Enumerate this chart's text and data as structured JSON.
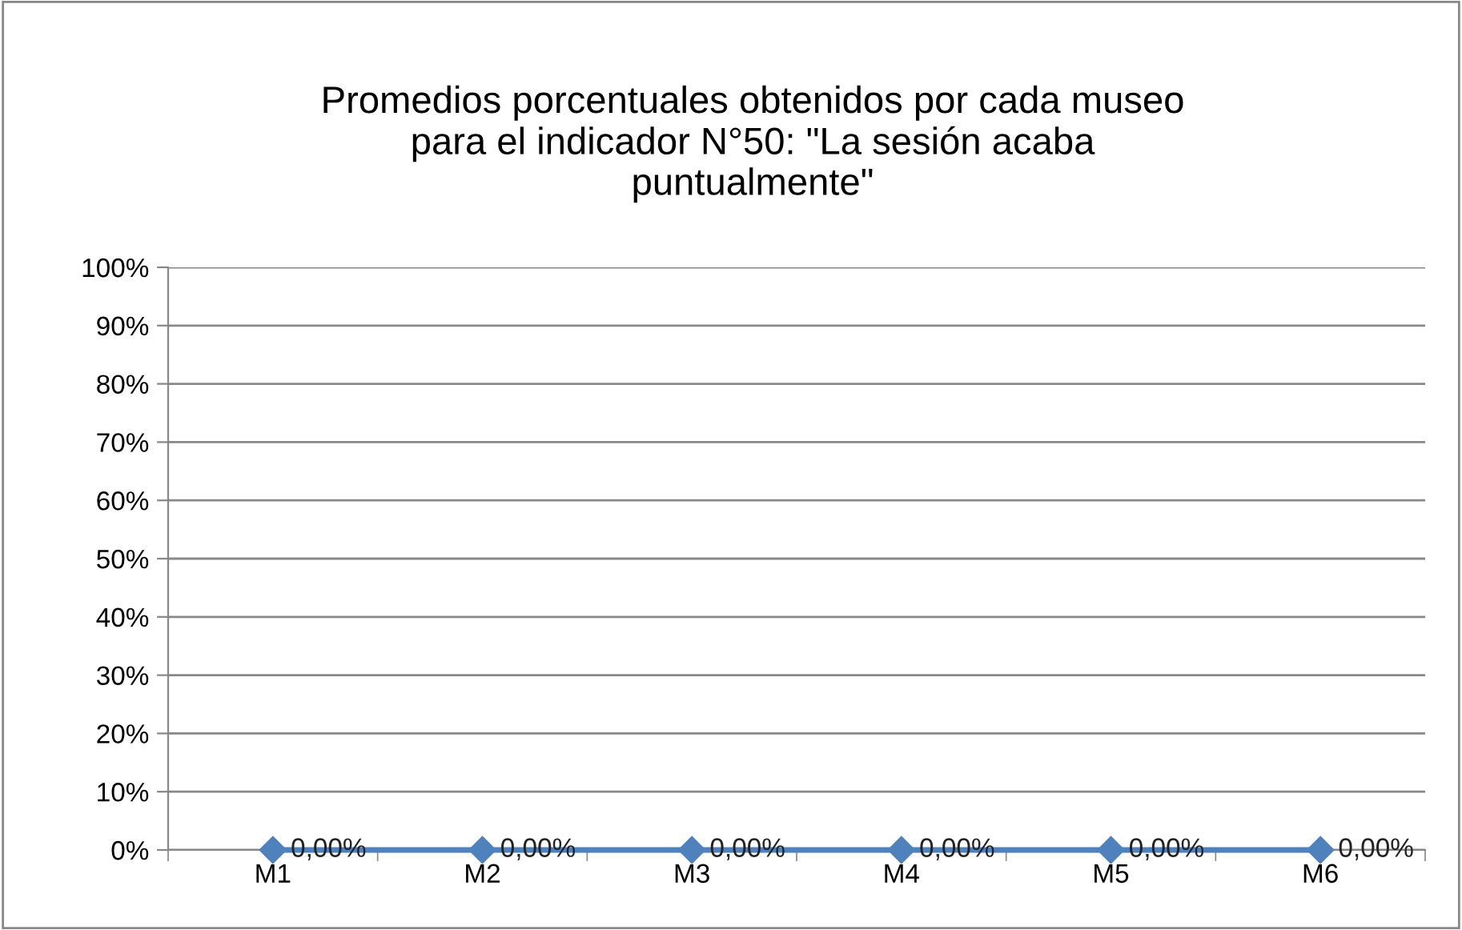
{
  "chart_data": {
    "type": "line",
    "title": "Promedios porcentuales obtenidos por cada museo\npara el indicador N°50: \"La sesión acaba\npuntualmente\"",
    "categories": [
      "M1",
      "M2",
      "M3",
      "M4",
      "M5",
      "M6"
    ],
    "series": [
      {
        "color": "#4f81bd",
        "values": [
          0,
          0,
          0,
          0,
          0,
          0
        ],
        "value_labels": [
          "0,00%",
          "0,00%",
          "0,00%",
          "0,00%",
          "0,00%",
          "0,00%"
        ]
      }
    ],
    "ylim": [
      0,
      100
    ],
    "yticks": [
      {
        "value": 0,
        "label": "0%"
      },
      {
        "value": 10,
        "label": "10%"
      },
      {
        "value": 20,
        "label": "20%"
      },
      {
        "value": 30,
        "label": "30%"
      },
      {
        "value": 40,
        "label": "40%"
      },
      {
        "value": 50,
        "label": "50%"
      },
      {
        "value": 60,
        "label": "60%"
      },
      {
        "value": 70,
        "label": "70%"
      },
      {
        "value": 80,
        "label": "80%"
      },
      {
        "value": 90,
        "label": "90%"
      },
      {
        "value": 100,
        "label": "100%"
      }
    ],
    "grid": "y",
    "marker": "diamond",
    "line_style": "solid",
    "legend": false
  }
}
